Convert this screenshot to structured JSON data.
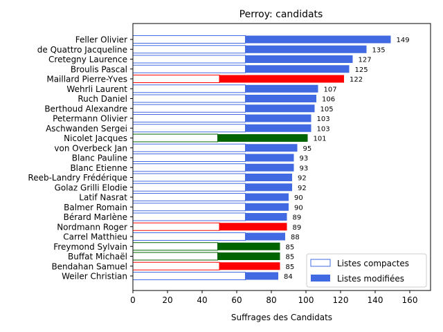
{
  "chart_data": {
    "type": "bar",
    "orientation": "horizontal",
    "title": "Perroy: candidats",
    "xlabel": "Suffrages des Candidats",
    "ylabel": "",
    "xlim": [
      0,
      172
    ],
    "xticks": [
      0,
      20,
      40,
      60,
      80,
      100,
      120,
      140,
      160
    ],
    "grid": false,
    "legend_position": "bottom-right",
    "legend": [
      {
        "label": "Listes compactes",
        "style": "outline",
        "color": "#4169e1"
      },
      {
        "label": "Listes modifiées",
        "style": "filled",
        "color": "#4169e1"
      }
    ],
    "categories": [
      "Feller Olivier",
      "de Quattro Jacqueline",
      "Cretegny Laurence",
      "Broulis Pascal",
      "Maillard Pierre-Yves",
      "Wehrli Laurent",
      "Ruch Daniel",
      "Berthoud Alexandre",
      "Petermann Olivier",
      "Aschwanden Sergei",
      "Nicolet Jacques",
      "von Overbeck Jan",
      "Blanc Pauline",
      "Blanc Etienne",
      "Reeb-Landry Frédérique",
      "Golaz Grilli Elodie",
      "Latif Nasrat",
      "Balmer Romain",
      "Bérard Marlène",
      "Nordmann Roger",
      "Carrel Matthieu",
      "Freymond Sylvain",
      "Buffat Michaël",
      "Bendahan Samuel",
      "Weiler Christian"
    ],
    "series": [
      {
        "name": "Listes compactes",
        "values": [
          65,
          65,
          65,
          65,
          50,
          65,
          65,
          65,
          65,
          65,
          49,
          65,
          65,
          65,
          65,
          65,
          65,
          65,
          65,
          50,
          65,
          49,
          49,
          50,
          65
        ]
      },
      {
        "name": "Listes modifiées",
        "values": [
          84,
          70,
          62,
          60,
          72,
          42,
          41,
          40,
          38,
          38,
          52,
          30,
          28,
          28,
          27,
          27,
          25,
          25,
          24,
          39,
          23,
          36,
          36,
          35,
          19
        ]
      }
    ],
    "totals": [
      149,
      135,
      127,
      125,
      122,
      107,
      106,
      105,
      103,
      103,
      101,
      95,
      93,
      93,
      92,
      92,
      90,
      90,
      89,
      89,
      88,
      85,
      85,
      85,
      84
    ],
    "bar_colors": [
      "#4169e1",
      "#4169e1",
      "#4169e1",
      "#4169e1",
      "#ff0000",
      "#4169e1",
      "#4169e1",
      "#4169e1",
      "#4169e1",
      "#4169e1",
      "#006400",
      "#4169e1",
      "#4169e1",
      "#4169e1",
      "#4169e1",
      "#4169e1",
      "#4169e1",
      "#4169e1",
      "#4169e1",
      "#ff0000",
      "#4169e1",
      "#006400",
      "#006400",
      "#ff0000",
      "#4169e1"
    ]
  }
}
